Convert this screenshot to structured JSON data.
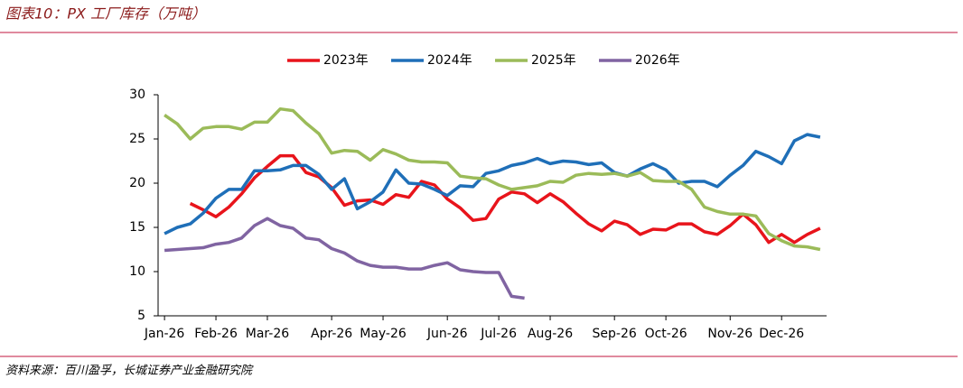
{
  "chart_data": {
    "type": "line",
    "title": "图表10：PX 工厂库存（万吨）",
    "source": "资料来源：百川盈孚，长城证券产业金融研究院",
    "categories": [
      "Jan-26",
      null,
      null,
      null,
      "Feb-26",
      null,
      null,
      null,
      "Mar-26",
      null,
      null,
      null,
      null,
      "Apr-26",
      null,
      null,
      null,
      "May-26",
      null,
      null,
      null,
      null,
      "Jun-26",
      null,
      null,
      null,
      "Jul-26",
      null,
      null,
      null,
      "Aug-26",
      null,
      null,
      null,
      null,
      "Sep-26",
      null,
      null,
      null,
      "Oct-26",
      null,
      null,
      null,
      null,
      "Nov-26",
      null,
      null,
      null,
      "Dec-26",
      null,
      null,
      null
    ],
    "series": [
      {
        "name": "2023年",
        "color": "#e8141b",
        "values": [
          null,
          null,
          17.7,
          17.0,
          16.2,
          17.3,
          18.8,
          20.6,
          21.9,
          23.1,
          23.1,
          21.2,
          20.7,
          19.5,
          17.5,
          18.0,
          18.1,
          17.6,
          18.7,
          18.4,
          20.2,
          19.8,
          18.2,
          17.2,
          15.8,
          16.0,
          18.2,
          19.0,
          18.8,
          17.8,
          18.8,
          17.9,
          16.6,
          15.4,
          14.6,
          15.7,
          15.3,
          14.2,
          14.8,
          14.7,
          15.4,
          15.4,
          14.5,
          14.2,
          15.2,
          16.5,
          15.3,
          13.3,
          14.2,
          13.3,
          14.2,
          14.9
        ]
      },
      {
        "name": "2024年",
        "color": "#1f6fb8",
        "values": [
          14.3,
          15.0,
          15.4,
          16.6,
          18.3,
          19.3,
          19.3,
          21.4,
          21.4,
          21.5,
          22.0,
          22.0,
          21.0,
          19.3,
          20.5,
          17.1,
          17.9,
          19.0,
          21.5,
          20.0,
          19.9,
          19.3,
          18.6,
          19.7,
          19.6,
          21.1,
          21.4,
          22.0,
          22.3,
          22.8,
          22.2,
          22.5,
          22.4,
          22.1,
          22.3,
          21.2,
          20.8,
          21.6,
          22.2,
          21.5,
          20.0,
          20.2,
          20.2,
          19.6,
          20.9,
          22.0,
          23.6,
          23.0,
          22.2,
          24.8,
          25.5,
          25.2
        ]
      },
      {
        "name": "2025年",
        "color": "#9bbb59",
        "values": [
          27.7,
          26.7,
          25.0,
          26.2,
          26.4,
          26.4,
          26.1,
          26.9,
          26.9,
          28.4,
          28.2,
          26.8,
          25.6,
          23.4,
          23.7,
          23.6,
          22.6,
          23.8,
          23.3,
          22.6,
          22.4,
          22.4,
          22.3,
          20.8,
          20.6,
          20.5,
          19.8,
          19.3,
          19.5,
          19.7,
          20.2,
          20.1,
          20.9,
          21.1,
          21.0,
          21.1,
          20.8,
          21.2,
          20.3,
          20.2,
          20.2,
          19.3,
          17.3,
          16.8,
          16.5,
          16.5,
          16.3,
          14.3,
          13.5,
          12.9,
          12.8,
          12.5
        ]
      },
      {
        "name": "2026年",
        "color": "#8064a2",
        "values": [
          12.4,
          12.5,
          12.6,
          12.7,
          13.1,
          13.3,
          13.8,
          15.2,
          16.0,
          15.2,
          14.9,
          13.8,
          13.6,
          12.6,
          12.1,
          11.2,
          10.7,
          10.5,
          10.5,
          10.3,
          10.3,
          10.7,
          11.0,
          10.2,
          10.0,
          9.9,
          9.9,
          7.2,
          7.0,
          null,
          null,
          null,
          null,
          null,
          null,
          null,
          null,
          null,
          null,
          null,
          null,
          null,
          null,
          null,
          null,
          null,
          null,
          null,
          null,
          null,
          null,
          null
        ]
      }
    ],
    "ylim": [
      5,
      30
    ],
    "yticks": [
      5,
      10,
      15,
      20,
      25,
      30
    ],
    "legend": "top"
  }
}
